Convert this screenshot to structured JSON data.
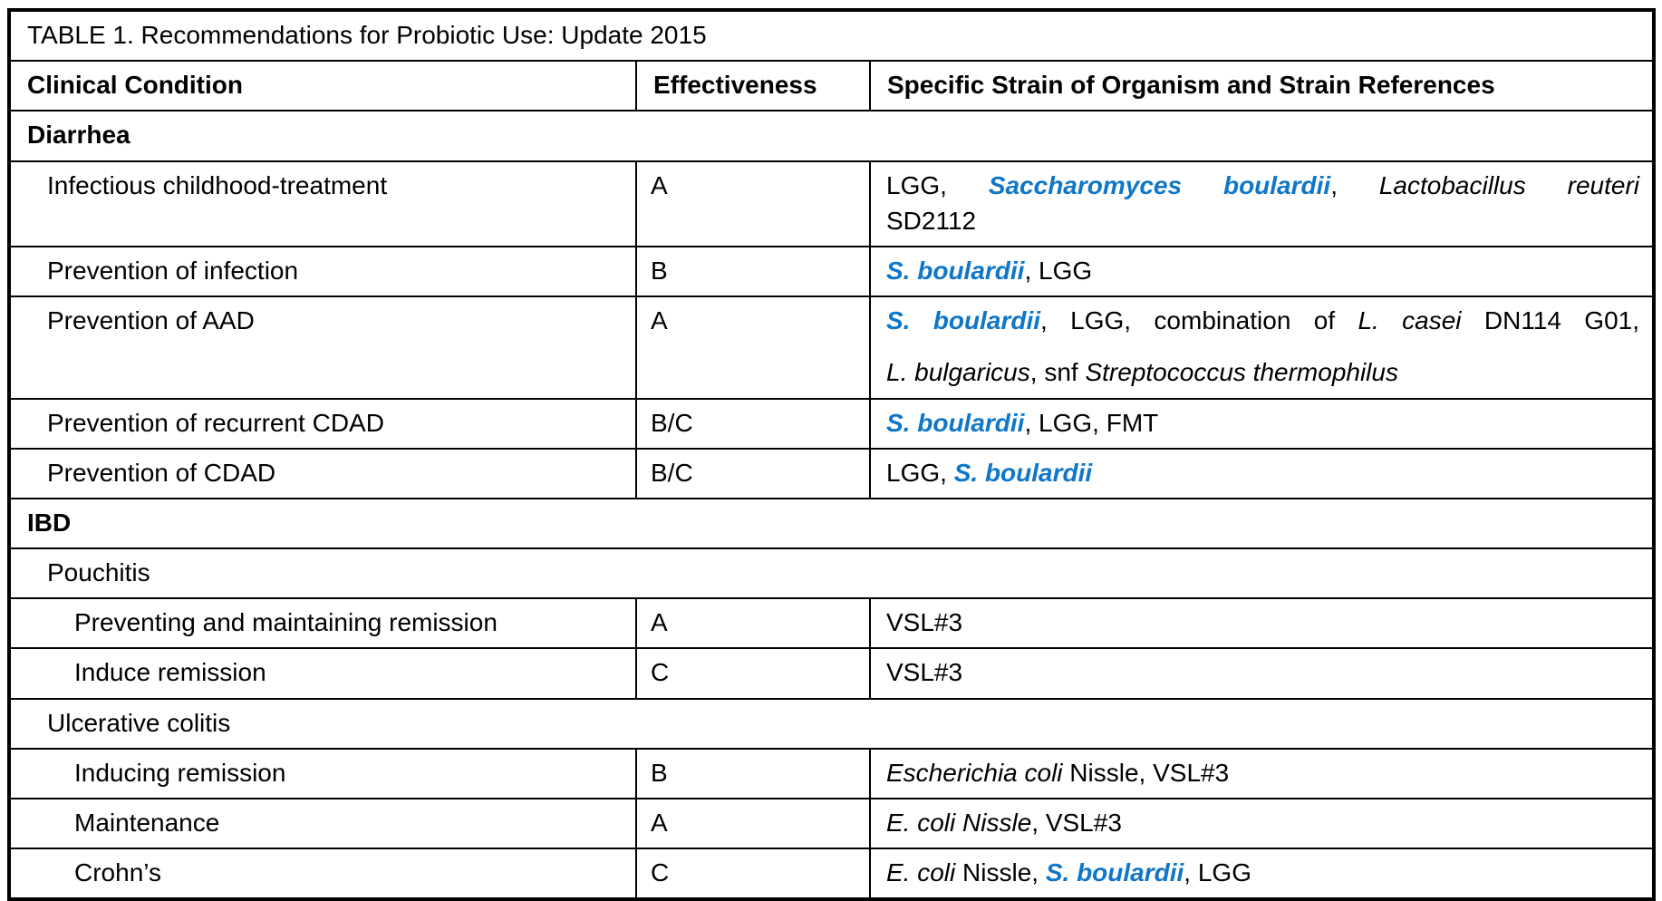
{
  "table": {
    "title": "TABLE 1. Recommendations for Probiotic Use: Update 2015",
    "columns": [
      "Clinical Condition",
      "Effectiveness",
      "Specific Strain of Organism and Strain References"
    ],
    "accent_color": "#0f76c8",
    "rows": [
      {
        "type": "section",
        "indent": 0,
        "label": "Diarrhea"
      },
      {
        "type": "item",
        "indent": 1,
        "condition": "Infectious childhood-treatment",
        "effectiveness": "A",
        "spaced": false,
        "strains": [
          {
            "stretch": true,
            "segments": [
              {
                "t": "LGG, ",
                "s": "n"
              },
              {
                "t": "Saccharomyces boulardii",
                "s": "b"
              },
              {
                "t": ", ",
                "s": "n"
              },
              {
                "t": "Lactobacillus reuteri",
                "s": "i"
              }
            ]
          },
          {
            "stretch": false,
            "segments": [
              {
                "t": "SD2112",
                "s": "n"
              }
            ]
          }
        ]
      },
      {
        "type": "item",
        "indent": 1,
        "condition": "Prevention of infection",
        "effectiveness": "B",
        "spaced": false,
        "strains": [
          {
            "stretch": false,
            "segments": [
              {
                "t": "S. boulardii",
                "s": "b"
              },
              {
                "t": ", LGG",
                "s": "n"
              }
            ]
          }
        ]
      },
      {
        "type": "item",
        "indent": 1,
        "condition": "Prevention of AAD",
        "effectiveness": "A",
        "spaced": true,
        "strains": [
          {
            "stretch": true,
            "segments": [
              {
                "t": "S. boulardii",
                "s": "b"
              },
              {
                "t": ", LGG, combination of ",
                "s": "n"
              },
              {
                "t": "L. casei",
                "s": "i"
              },
              {
                "t": " DN114 G01,",
                "s": "n"
              }
            ]
          },
          {
            "stretch": false,
            "segments": [
              {
                "t": "L. bulgaricus",
                "s": "i"
              },
              {
                "t": ", snf ",
                "s": "n"
              },
              {
                "t": "Streptococcus thermophilus",
                "s": "i"
              }
            ]
          }
        ]
      },
      {
        "type": "item",
        "indent": 1,
        "condition": "Prevention of recurrent CDAD",
        "effectiveness": "B/C",
        "spaced": false,
        "strains": [
          {
            "stretch": false,
            "segments": [
              {
                "t": "S. boulardii",
                "s": "b"
              },
              {
                "t": ", LGG, FMT",
                "s": "n"
              }
            ]
          }
        ]
      },
      {
        "type": "item",
        "indent": 1,
        "condition": "Prevention of CDAD",
        "effectiveness": "B/C",
        "spaced": false,
        "strains": [
          {
            "stretch": false,
            "segments": [
              {
                "t": "LGG, ",
                "s": "n"
              },
              {
                "t": "S. boulardii",
                "s": "b"
              }
            ]
          }
        ]
      },
      {
        "type": "section",
        "indent": 0,
        "label": "IBD"
      },
      {
        "type": "subsection",
        "indent": 1,
        "label": "Pouchitis"
      },
      {
        "type": "item",
        "indent": 2,
        "condition": "Preventing and maintaining remission",
        "effectiveness": "A",
        "spaced": false,
        "strains": [
          {
            "stretch": false,
            "segments": [
              {
                "t": "VSL#3",
                "s": "n"
              }
            ]
          }
        ]
      },
      {
        "type": "item",
        "indent": 2,
        "condition": "Induce remission",
        "effectiveness": "C",
        "spaced": false,
        "strains": [
          {
            "stretch": false,
            "segments": [
              {
                "t": "VSL#3",
                "s": "n"
              }
            ]
          }
        ]
      },
      {
        "type": "subsection",
        "indent": 1,
        "label": "Ulcerative colitis"
      },
      {
        "type": "item",
        "indent": 2,
        "condition": "Inducing remission",
        "effectiveness": "B",
        "spaced": false,
        "strains": [
          {
            "stretch": false,
            "segments": [
              {
                "t": "Escherichia coli",
                "s": "i"
              },
              {
                "t": " Nissle, VSL#3",
                "s": "n"
              }
            ]
          }
        ]
      },
      {
        "type": "item",
        "indent": 2,
        "condition": "Maintenance",
        "effectiveness": "A",
        "spaced": false,
        "strains": [
          {
            "stretch": false,
            "segments": [
              {
                "t": "E. coli Nissle",
                "s": "i"
              },
              {
                "t": ", VSL#3",
                "s": "n"
              }
            ]
          }
        ]
      },
      {
        "type": "item",
        "indent": 2,
        "condition": "Crohn’s",
        "effectiveness": "C",
        "spaced": false,
        "strains": [
          {
            "stretch": false,
            "segments": [
              {
                "t": "E. coli",
                "s": "i"
              },
              {
                "t": " Nissle, ",
                "s": "n"
              },
              {
                "t": "S. boulardii",
                "s": "b"
              },
              {
                "t": ", LGG",
                "s": "n"
              }
            ]
          }
        ]
      }
    ]
  }
}
